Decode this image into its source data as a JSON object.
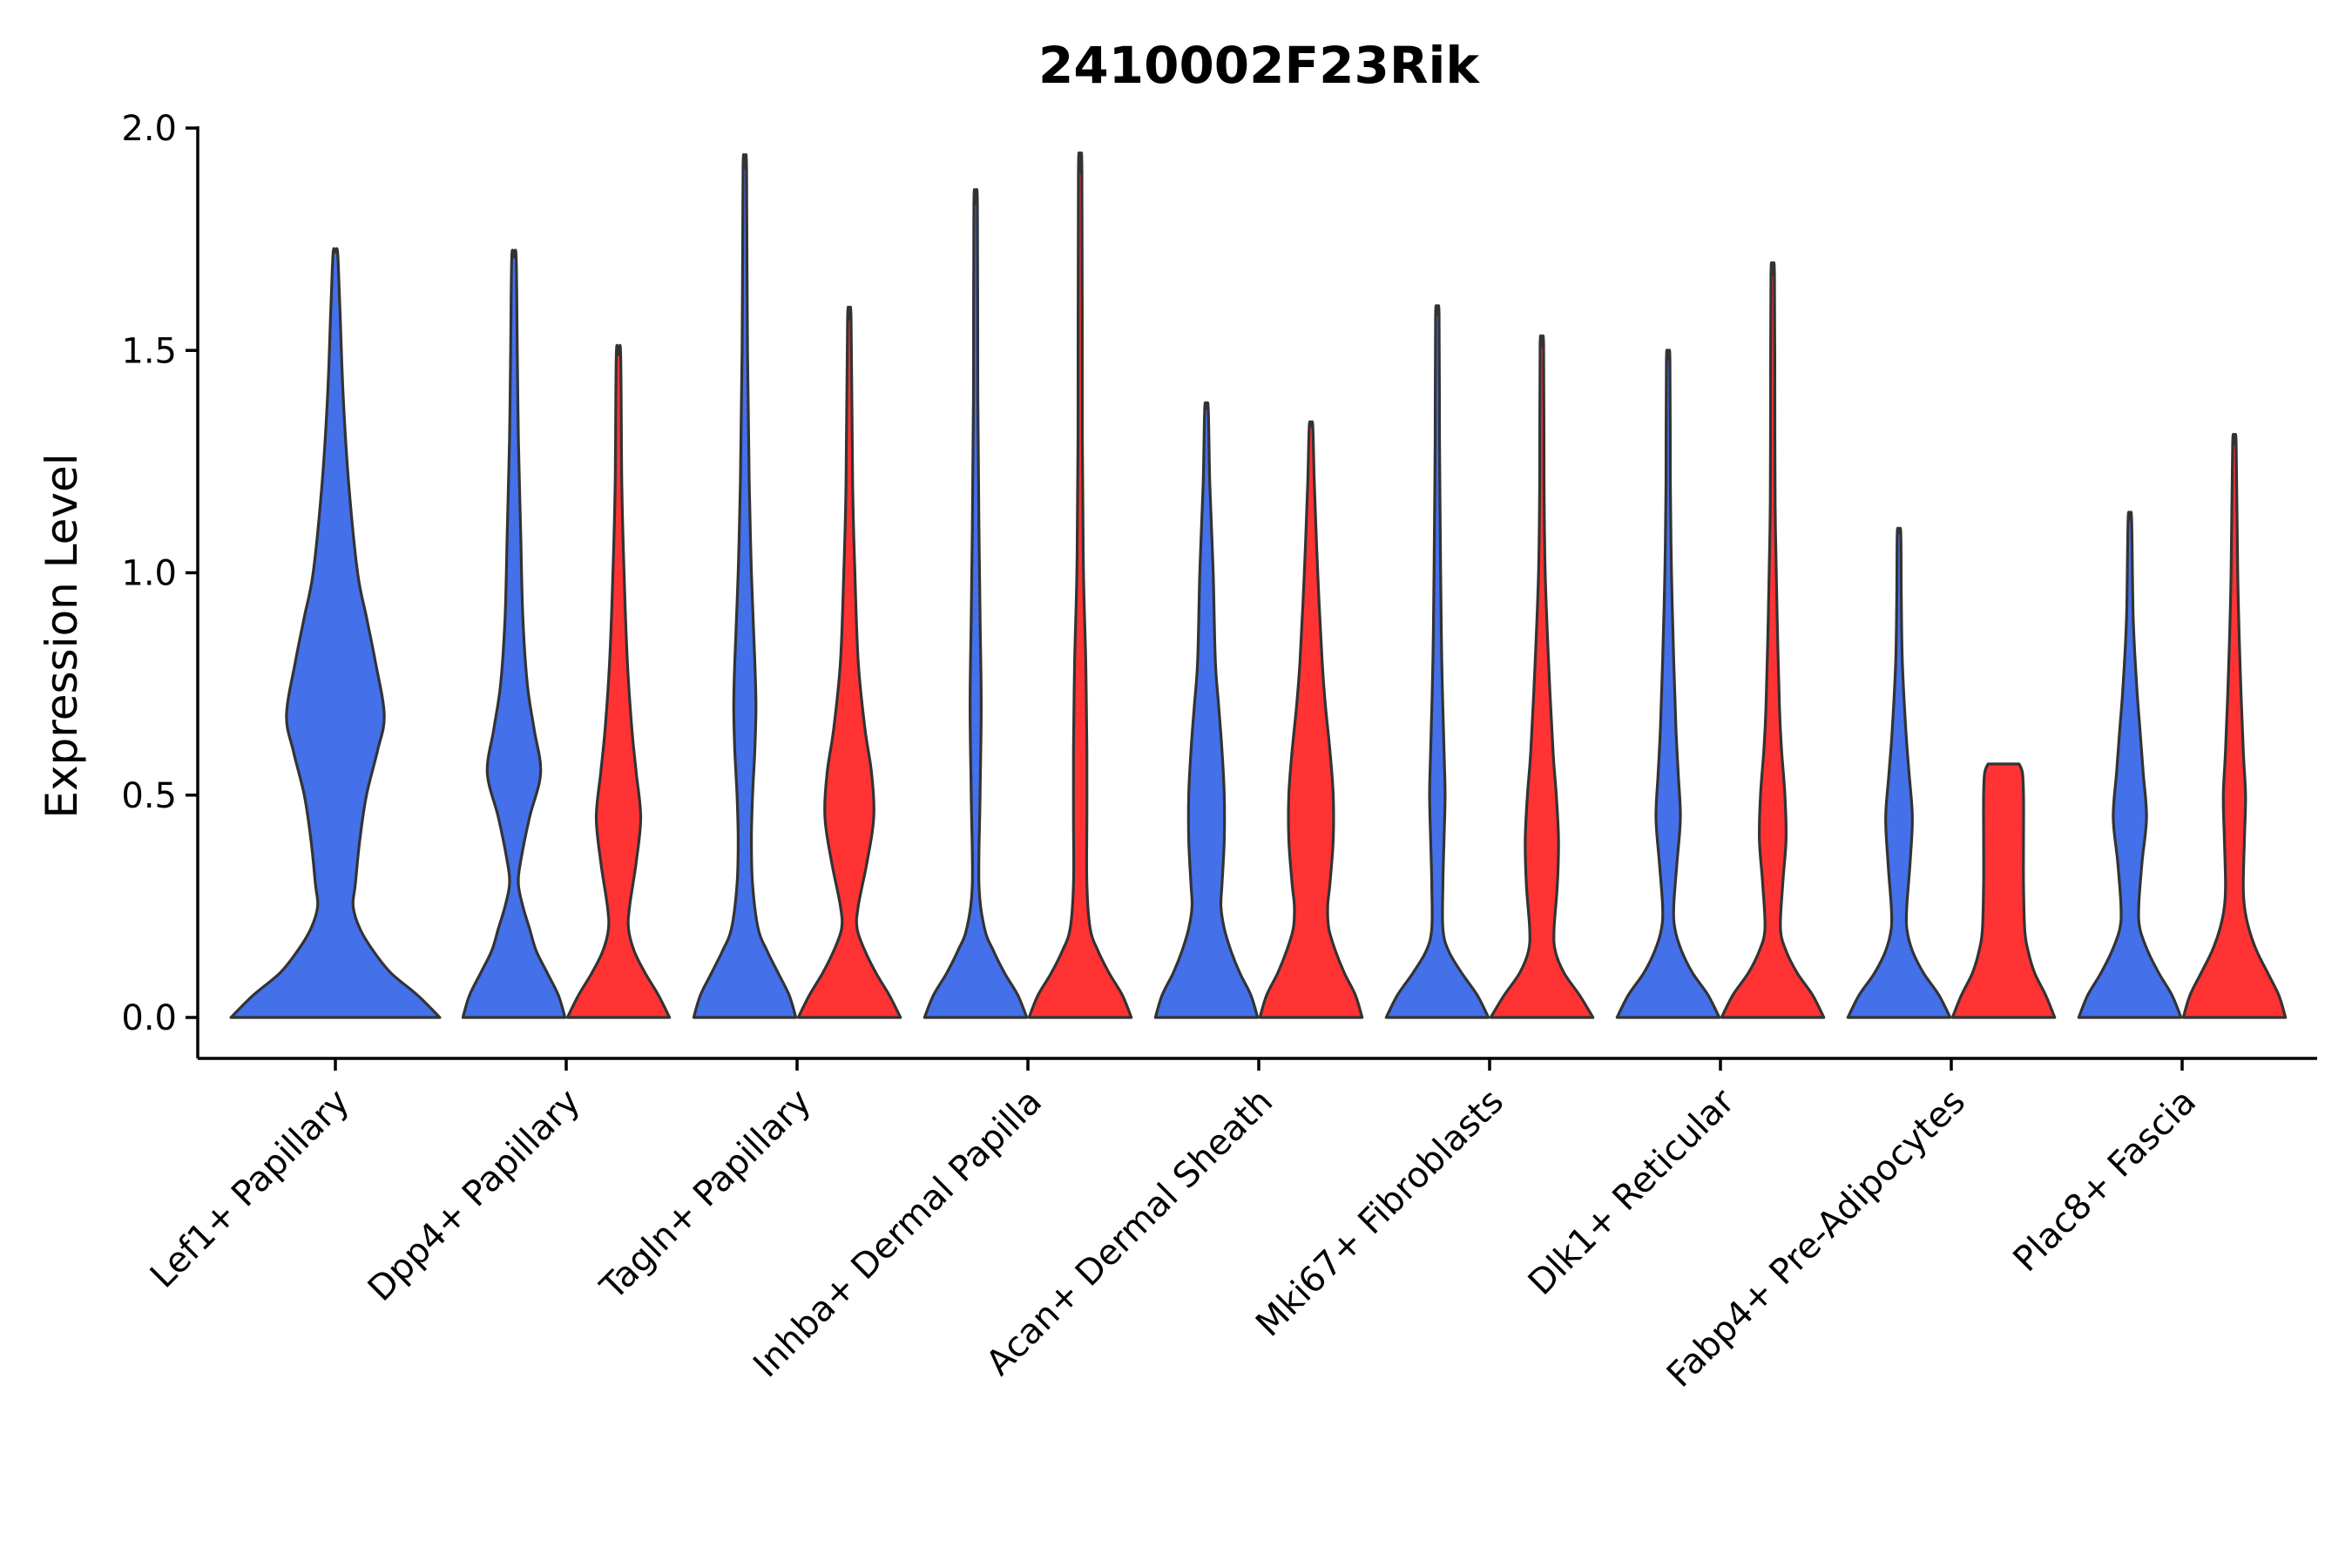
{
  "chart_data": {
    "type": "violin",
    "title": "2410002F23Rik",
    "xlabel": "",
    "ylabel": "Expression Level",
    "ylim": [
      -0.1,
      2.0
    ],
    "yticks": [
      0.0,
      0.5,
      1.0,
      1.5,
      2.0
    ],
    "ytick_labels": [
      "0.0",
      "0.5",
      "1.0",
      "1.5",
      "2.0"
    ],
    "categories": [
      "Lef1+ Papillary",
      "Dpp4+ Papillary",
      "Tagln+ Papillary",
      "Inhba+ Dermal Papilla",
      "Acan+ Dermal Sheath",
      "Mki67+ Fibroblasts",
      "Dlk1+ Reticular",
      "Fabp4+ Pre-Adipocytes",
      "Plac8+ Fascia"
    ],
    "grid": false,
    "legend": "none",
    "colors": {
      "group_a": "#4470EA",
      "group_b": "#FF3333",
      "outline": "#333333"
    },
    "violins": [
      {
        "category": 0,
        "group": "a",
        "max": 1.72,
        "profile": [
          [
            0,
            0.47
          ],
          [
            0.05,
            0.37
          ],
          [
            0.1,
            0.25
          ],
          [
            0.15,
            0.17
          ],
          [
            0.2,
            0.11
          ],
          [
            0.25,
            0.08
          ],
          [
            0.3,
            0.09
          ],
          [
            0.4,
            0.11
          ],
          [
            0.5,
            0.14
          ],
          [
            0.6,
            0.19
          ],
          [
            0.68,
            0.22
          ],
          [
            0.8,
            0.18
          ],
          [
            0.9,
            0.14
          ],
          [
            1.0,
            0.1
          ],
          [
            1.2,
            0.06
          ],
          [
            1.4,
            0.035
          ],
          [
            1.6,
            0.02
          ],
          [
            1.72,
            0.01
          ]
        ]
      },
      {
        "category": 1,
        "group": "a",
        "max": 1.71,
        "profile": [
          [
            0,
            0.23
          ],
          [
            0.05,
            0.2
          ],
          [
            0.1,
            0.15
          ],
          [
            0.15,
            0.1
          ],
          [
            0.2,
            0.07
          ],
          [
            0.25,
            0.04
          ],
          [
            0.3,
            0.02
          ],
          [
            0.35,
            0.03
          ],
          [
            0.45,
            0.07
          ],
          [
            0.55,
            0.12
          ],
          [
            0.65,
            0.09
          ],
          [
            0.75,
            0.06
          ],
          [
            0.9,
            0.04
          ],
          [
            1.1,
            0.03
          ],
          [
            1.3,
            0.02
          ],
          [
            1.5,
            0.015
          ],
          [
            1.71,
            0.01
          ]
        ]
      },
      {
        "category": 1,
        "group": "b",
        "max": 1.49,
        "profile": [
          [
            0,
            0.23
          ],
          [
            0.05,
            0.18
          ],
          [
            0.1,
            0.12
          ],
          [
            0.15,
            0.07
          ],
          [
            0.2,
            0.045
          ],
          [
            0.25,
            0.05
          ],
          [
            0.35,
            0.08
          ],
          [
            0.45,
            0.1
          ],
          [
            0.55,
            0.08
          ],
          [
            0.65,
            0.06
          ],
          [
            0.8,
            0.04
          ],
          [
            1.0,
            0.025
          ],
          [
            1.2,
            0.015
          ],
          [
            1.49,
            0.01
          ]
        ]
      },
      {
        "category": 2,
        "group": "a",
        "max": 1.91,
        "profile": [
          [
            0,
            0.23
          ],
          [
            0.05,
            0.2
          ],
          [
            0.1,
            0.15
          ],
          [
            0.15,
            0.1
          ],
          [
            0.2,
            0.06
          ],
          [
            0.3,
            0.035
          ],
          [
            0.4,
            0.03
          ],
          [
            0.5,
            0.035
          ],
          [
            0.6,
            0.045
          ],
          [
            0.7,
            0.05
          ],
          [
            0.8,
            0.045
          ],
          [
            1.0,
            0.03
          ],
          [
            1.2,
            0.02
          ],
          [
            1.5,
            0.012
          ],
          [
            1.91,
            0.008
          ]
        ]
      },
      {
        "category": 2,
        "group": "b",
        "max": 1.57,
        "profile": [
          [
            0,
            0.23
          ],
          [
            0.05,
            0.18
          ],
          [
            0.1,
            0.12
          ],
          [
            0.15,
            0.07
          ],
          [
            0.2,
            0.035
          ],
          [
            0.25,
            0.04
          ],
          [
            0.35,
            0.08
          ],
          [
            0.45,
            0.11
          ],
          [
            0.55,
            0.1
          ],
          [
            0.65,
            0.07
          ],
          [
            0.8,
            0.04
          ],
          [
            1.0,
            0.025
          ],
          [
            1.2,
            0.015
          ],
          [
            1.57,
            0.008
          ]
        ]
      },
      {
        "category": 3,
        "group": "a",
        "max": 1.83,
        "profile": [
          [
            0,
            0.23
          ],
          [
            0.05,
            0.19
          ],
          [
            0.1,
            0.13
          ],
          [
            0.15,
            0.08
          ],
          [
            0.2,
            0.04
          ],
          [
            0.3,
            0.015
          ],
          [
            0.5,
            0.02
          ],
          [
            0.7,
            0.025
          ],
          [
            0.9,
            0.02
          ],
          [
            1.1,
            0.015
          ],
          [
            1.4,
            0.01
          ],
          [
            1.83,
            0.008
          ]
        ]
      },
      {
        "category": 3,
        "group": "b",
        "max": 1.9,
        "profile": [
          [
            0,
            0.23
          ],
          [
            0.05,
            0.19
          ],
          [
            0.1,
            0.13
          ],
          [
            0.15,
            0.08
          ],
          [
            0.2,
            0.045
          ],
          [
            0.3,
            0.03
          ],
          [
            0.45,
            0.03
          ],
          [
            0.6,
            0.03
          ],
          [
            0.8,
            0.025
          ],
          [
            1.0,
            0.015
          ],
          [
            1.3,
            0.01
          ],
          [
            1.9,
            0.008
          ]
        ]
      },
      {
        "category": 4,
        "group": "a",
        "max": 1.37,
        "profile": [
          [
            0,
            0.23
          ],
          [
            0.05,
            0.2
          ],
          [
            0.1,
            0.15
          ],
          [
            0.15,
            0.11
          ],
          [
            0.2,
            0.08
          ],
          [
            0.25,
            0.065
          ],
          [
            0.3,
            0.07
          ],
          [
            0.4,
            0.08
          ],
          [
            0.5,
            0.08
          ],
          [
            0.6,
            0.07
          ],
          [
            0.7,
            0.055
          ],
          [
            0.8,
            0.04
          ],
          [
            1.0,
            0.03
          ],
          [
            1.2,
            0.015
          ],
          [
            1.37,
            0.008
          ]
        ]
      },
      {
        "category": 4,
        "group": "b",
        "max": 1.33,
        "profile": [
          [
            0,
            0.23
          ],
          [
            0.05,
            0.2
          ],
          [
            0.1,
            0.15
          ],
          [
            0.15,
            0.11
          ],
          [
            0.2,
            0.08
          ],
          [
            0.25,
            0.075
          ],
          [
            0.3,
            0.085
          ],
          [
            0.4,
            0.1
          ],
          [
            0.5,
            0.1
          ],
          [
            0.6,
            0.085
          ],
          [
            0.7,
            0.065
          ],
          [
            0.8,
            0.05
          ],
          [
            1.0,
            0.03
          ],
          [
            1.2,
            0.015
          ],
          [
            1.33,
            0.008
          ]
        ]
      },
      {
        "category": 5,
        "group": "a",
        "max": 1.58,
        "profile": [
          [
            0,
            0.23
          ],
          [
            0.05,
            0.18
          ],
          [
            0.1,
            0.11
          ],
          [
            0.15,
            0.05
          ],
          [
            0.2,
            0.025
          ],
          [
            0.3,
            0.025
          ],
          [
            0.4,
            0.03
          ],
          [
            0.5,
            0.035
          ],
          [
            0.6,
            0.03
          ],
          [
            0.8,
            0.02
          ],
          [
            1.0,
            0.015
          ],
          [
            1.3,
            0.01
          ],
          [
            1.58,
            0.008
          ]
        ]
      },
      {
        "category": 5,
        "group": "b",
        "max": 1.51,
        "profile": [
          [
            0,
            0.23
          ],
          [
            0.05,
            0.17
          ],
          [
            0.1,
            0.1
          ],
          [
            0.15,
            0.06
          ],
          [
            0.2,
            0.055
          ],
          [
            0.3,
            0.07
          ],
          [
            0.4,
            0.075
          ],
          [
            0.5,
            0.065
          ],
          [
            0.6,
            0.05
          ],
          [
            0.8,
            0.03
          ],
          [
            1.0,
            0.015
          ],
          [
            1.2,
            0.01
          ],
          [
            1.51,
            0.008
          ]
        ]
      },
      {
        "category": 6,
        "group": "a",
        "max": 1.48,
        "profile": [
          [
            0,
            0.23
          ],
          [
            0.05,
            0.18
          ],
          [
            0.1,
            0.11
          ],
          [
            0.15,
            0.06
          ],
          [
            0.2,
            0.03
          ],
          [
            0.25,
            0.025
          ],
          [
            0.35,
            0.04
          ],
          [
            0.45,
            0.055
          ],
          [
            0.55,
            0.045
          ],
          [
            0.65,
            0.035
          ],
          [
            0.8,
            0.025
          ],
          [
            1.0,
            0.015
          ],
          [
            1.2,
            0.01
          ],
          [
            1.48,
            0.008
          ]
        ]
      },
      {
        "category": 6,
        "group": "b",
        "max": 1.67,
        "profile": [
          [
            0,
            0.23
          ],
          [
            0.05,
            0.18
          ],
          [
            0.1,
            0.11
          ],
          [
            0.15,
            0.06
          ],
          [
            0.2,
            0.035
          ],
          [
            0.3,
            0.045
          ],
          [
            0.4,
            0.06
          ],
          [
            0.5,
            0.055
          ],
          [
            0.6,
            0.04
          ],
          [
            0.7,
            0.03
          ],
          [
            0.9,
            0.02
          ],
          [
            1.1,
            0.012
          ],
          [
            1.3,
            0.01
          ],
          [
            1.67,
            0.008
          ]
        ]
      },
      {
        "category": 7,
        "group": "a",
        "max": 1.09,
        "profile": [
          [
            0,
            0.23
          ],
          [
            0.05,
            0.18
          ],
          [
            0.1,
            0.11
          ],
          [
            0.15,
            0.06
          ],
          [
            0.2,
            0.035
          ],
          [
            0.25,
            0.035
          ],
          [
            0.35,
            0.05
          ],
          [
            0.45,
            0.06
          ],
          [
            0.55,
            0.045
          ],
          [
            0.65,
            0.03
          ],
          [
            0.8,
            0.015
          ],
          [
            0.95,
            0.01
          ],
          [
            1.09,
            0.008
          ]
        ]
      },
      {
        "category": 7,
        "group": "b",
        "max": 0.57,
        "profile": [
          [
            0,
            0.23
          ],
          [
            0.05,
            0.19
          ],
          [
            0.1,
            0.14
          ],
          [
            0.15,
            0.11
          ],
          [
            0.2,
            0.095
          ],
          [
            0.3,
            0.09
          ],
          [
            0.4,
            0.09
          ],
          [
            0.5,
            0.09
          ],
          [
            0.55,
            0.085
          ],
          [
            0.57,
            0.07
          ]
        ],
        "flat_top": true
      },
      {
        "category": 8,
        "group": "a",
        "max": 1.12,
        "profile": [
          [
            0,
            0.23
          ],
          [
            0.05,
            0.19
          ],
          [
            0.1,
            0.13
          ],
          [
            0.15,
            0.08
          ],
          [
            0.2,
            0.045
          ],
          [
            0.25,
            0.04
          ],
          [
            0.35,
            0.055
          ],
          [
            0.45,
            0.075
          ],
          [
            0.55,
            0.06
          ],
          [
            0.65,
            0.045
          ],
          [
            0.75,
            0.03
          ],
          [
            0.9,
            0.015
          ],
          [
            1.12,
            0.008
          ]
        ]
      },
      {
        "category": 8,
        "group": "b",
        "max": 1.29,
        "profile": [
          [
            0,
            0.23
          ],
          [
            0.05,
            0.2
          ],
          [
            0.1,
            0.15
          ],
          [
            0.15,
            0.1
          ],
          [
            0.2,
            0.065
          ],
          [
            0.25,
            0.045
          ],
          [
            0.3,
            0.04
          ],
          [
            0.4,
            0.045
          ],
          [
            0.5,
            0.05
          ],
          [
            0.6,
            0.04
          ],
          [
            0.8,
            0.025
          ],
          [
            1.0,
            0.015
          ],
          [
            1.29,
            0.008
          ]
        ]
      }
    ]
  }
}
